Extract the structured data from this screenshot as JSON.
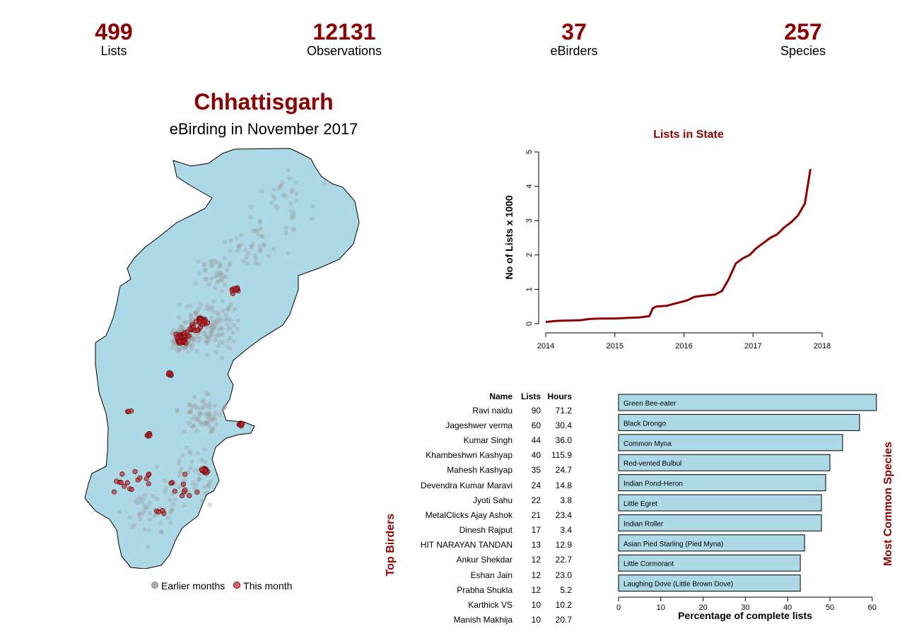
{
  "stats": {
    "lists": {
      "value": "499",
      "label": "Lists"
    },
    "observations": {
      "value": "12131",
      "label": "Observations"
    },
    "ebirders": {
      "value": "37",
      "label": "eBirders"
    },
    "species": {
      "value": "257",
      "label": "Species"
    }
  },
  "map": {
    "title": "Chhattisgarh",
    "subtitle": "eBirding in November 2017",
    "legend": {
      "earlier": "Earlier months",
      "this": "This month"
    },
    "colors": {
      "land": "#add8e6",
      "earlier": "#9a9a9a",
      "this": "#c0262c",
      "border": "#000000"
    }
  },
  "chart_data": [
    {
      "type": "line",
      "title": "Lists in State",
      "xlabel": "",
      "ylabel": "No of Lists x 1000",
      "xlim": [
        2014,
        2018
      ],
      "ylim": [
        0,
        5
      ],
      "xticks": [
        "2014",
        "2015",
        "2016",
        "2017",
        "2018"
      ],
      "yticks": [
        "0",
        "1",
        "2",
        "3",
        "4",
        "5"
      ],
      "color": "#8b0000",
      "x": [
        2014.0,
        2014.15,
        2014.3,
        2014.5,
        2014.65,
        2014.8,
        2015.0,
        2015.2,
        2015.35,
        2015.5,
        2015.55,
        2015.6,
        2015.75,
        2015.9,
        2016.05,
        2016.15,
        2016.3,
        2016.45,
        2016.55,
        2016.65,
        2016.75,
        2016.85,
        2016.95,
        2017.05,
        2017.15,
        2017.25,
        2017.35,
        2017.45,
        2017.55,
        2017.65,
        2017.75,
        2017.83
      ],
      "y": [
        0.05,
        0.08,
        0.09,
        0.1,
        0.14,
        0.15,
        0.15,
        0.17,
        0.18,
        0.22,
        0.45,
        0.5,
        0.52,
        0.6,
        0.68,
        0.78,
        0.82,
        0.85,
        0.95,
        1.3,
        1.75,
        1.9,
        2.0,
        2.2,
        2.35,
        2.5,
        2.6,
        2.8,
        2.95,
        3.15,
        3.5,
        4.5
      ]
    },
    {
      "type": "table",
      "title": "Top Birders",
      "columns": [
        "Name",
        "Lists",
        "Hours"
      ],
      "rows": [
        [
          "Ravi naidu",
          "90",
          "71.2"
        ],
        [
          "Jageshwer verma",
          "60",
          "30.4"
        ],
        [
          "Kumar Singh",
          "44",
          "36.0"
        ],
        [
          "Khambeshwri Kashyap",
          "40",
          "115.9"
        ],
        [
          "Mahesh  Kashyap",
          "35",
          "24.7"
        ],
        [
          "Devendra Kumar Maravi",
          "24",
          "14.8"
        ],
        [
          "Jyoti Sahu",
          "22",
          "3.8"
        ],
        [
          "MetalClicks Ajay Ashok",
          "21",
          "23.4"
        ],
        [
          "Dinesh Rajput",
          "17",
          "3.4"
        ],
        [
          "HIT NARAYAN TANDAN",
          "13",
          "12.9"
        ],
        [
          "Ankur Shekdar",
          "12",
          "22.7"
        ],
        [
          "Eshan Jain",
          "12",
          "23.0"
        ],
        [
          "Prabha Shukla",
          "12",
          "5.2"
        ],
        [
          "Karthick VS",
          "10",
          "10.2"
        ],
        [
          "Manish Makhija",
          "10",
          "20.7"
        ]
      ]
    },
    {
      "type": "bar",
      "orientation": "horizontal",
      "title": "Most Common Species",
      "xlabel": "Percentage of complete lists",
      "xlim": [
        0,
        60
      ],
      "xticks": [
        "0",
        "10",
        "20",
        "30",
        "40",
        "50",
        "60"
      ],
      "color": "#add8e6",
      "categories": [
        "Green Bee-eater",
        "Black Drongo",
        "Common Myna",
        "Red-vented Bulbul",
        "Indian Pond-Heron",
        "Little Egret",
        "Indian Roller",
        "Asian Pied Starling (Pied Myna)",
        "Little Cormorant",
        "Laughing Dove (Little Brown Dove)"
      ],
      "values": [
        61,
        57,
        53,
        50,
        49,
        48,
        48,
        44,
        43,
        43
      ]
    }
  ]
}
